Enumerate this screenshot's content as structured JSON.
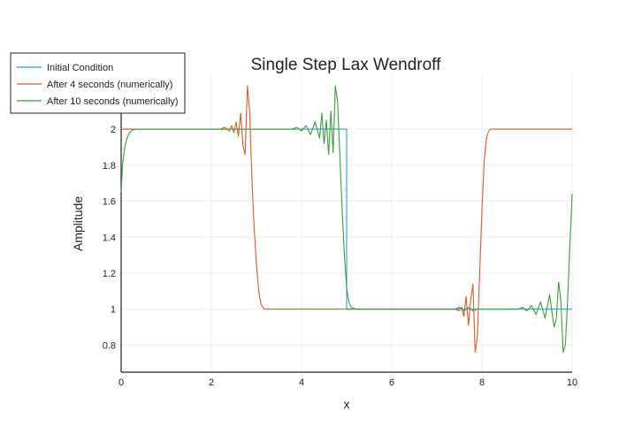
{
  "chart_data": {
    "type": "line",
    "title": "Single Step Lax Wendroff",
    "xlabel": "x",
    "ylabel": "Amplitude",
    "xlim": [
      0,
      10
    ],
    "ylim": [
      0.65,
      2.3
    ],
    "xticks": [
      0,
      2,
      4,
      6,
      8,
      10
    ],
    "yticks": [
      0.8,
      1,
      1.2,
      1.4,
      1.6,
      1.8,
      2
    ],
    "grid": true,
    "legend_position": "top-left",
    "series": [
      {
        "name": "Initial Condition",
        "color": "#2d9fd3",
        "x": [
          0,
          5,
          5,
          10
        ],
        "y": [
          2,
          2,
          1,
          1
        ]
      },
      {
        "name": "After 4 seconds (numerically)",
        "color": "#e0572c",
        "x": [
          0,
          2.0,
          2.2,
          2.3,
          2.4,
          2.45,
          2.5,
          2.55,
          2.6,
          2.65,
          2.7,
          2.75,
          2.8,
          2.85,
          2.9,
          2.95,
          3.0,
          3.05,
          3.1,
          3.15,
          3.2,
          3.3,
          3.5,
          7.2,
          7.4,
          7.5,
          7.55,
          7.6,
          7.65,
          7.7,
          7.75,
          7.8,
          7.85,
          7.9,
          7.95,
          8.0,
          8.05,
          8.1,
          8.15,
          8.2,
          8.25,
          8.3,
          8.4,
          8.6,
          10
        ],
        "y": [
          2,
          2,
          2.0,
          2.01,
          1.99,
          2.02,
          1.98,
          2.04,
          1.96,
          2.09,
          1.91,
          1.86,
          2.24,
          2.1,
          1.72,
          1.45,
          1.25,
          1.1,
          1.03,
          1.005,
          1,
          1,
          1,
          1,
          1,
          0.99,
          1.01,
          0.96,
          1.07,
          0.91,
          1.05,
          1.14,
          0.76,
          0.85,
          1.2,
          1.55,
          1.82,
          1.95,
          1.99,
          2.0,
          2.0,
          2.0,
          2.0,
          2,
          2
        ]
      },
      {
        "name": "After 10 seconds (numerically)",
        "color": "#3a9e3a",
        "x": [
          0,
          0.03,
          0.08,
          0.13,
          0.18,
          0.25,
          0.35,
          0.5,
          3.7,
          3.8,
          3.9,
          4.0,
          4.1,
          4.2,
          4.3,
          4.4,
          4.45,
          4.5,
          4.55,
          4.6,
          4.65,
          4.7,
          4.75,
          4.8,
          4.85,
          4.9,
          4.95,
          5.0,
          5.05,
          5.1,
          5.2,
          5.3,
          5.5,
          7.0,
          7.2,
          7.3,
          7.4,
          7.5,
          7.6,
          7.7,
          7.8,
          7.9,
          8.0,
          8.1,
          8.2,
          8.3,
          8.4,
          8.5,
          8.6,
          8.7,
          8.8,
          8.9,
          9.0,
          9.1,
          9.2,
          9.3,
          9.4,
          9.5,
          9.6,
          9.65,
          9.7,
          9.75,
          9.8,
          9.85,
          9.9,
          9.95,
          10.0
        ],
        "y": [
          1.65,
          1.8,
          1.9,
          1.95,
          1.98,
          1.995,
          2,
          2,
          2,
          2.0,
          2.01,
          1.99,
          2.02,
          1.97,
          2.04,
          1.95,
          2.09,
          1.92,
          2.05,
          1.86,
          2.1,
          1.87,
          2.24,
          2.15,
          1.85,
          1.55,
          1.3,
          1.12,
          1.04,
          1.01,
          1,
          1,
          1,
          1,
          1.0,
          1.0,
          1.0,
          1.01,
          0.99,
          1.01,
          0.99,
          1.0,
          1.0,
          1.0,
          1.0,
          1.0,
          1.0,
          1.0,
          1.0,
          1.0,
          1.0,
          1.01,
          0.99,
          1.02,
          0.97,
          1.04,
          0.95,
          1.08,
          0.9,
          0.95,
          1.15,
          1.05,
          0.76,
          0.8,
          1.05,
          1.35,
          1.64
        ]
      }
    ]
  }
}
